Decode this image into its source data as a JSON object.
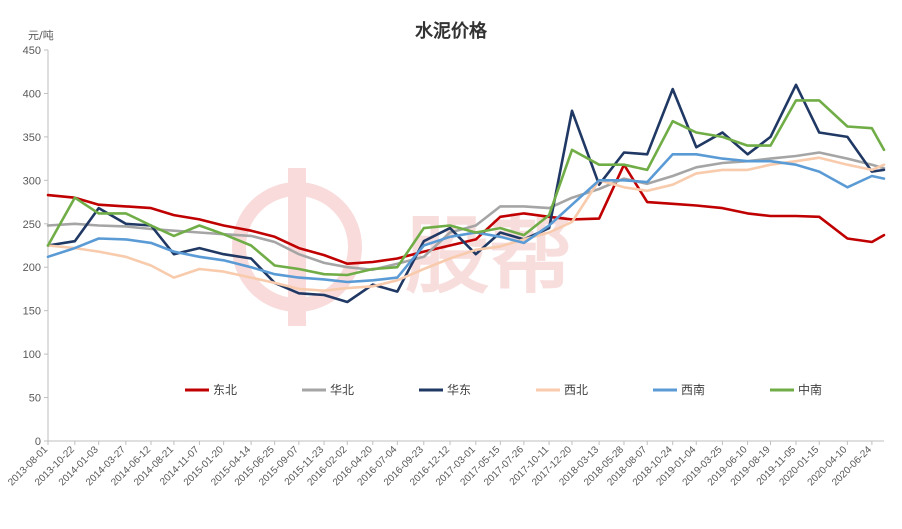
{
  "chart_data": {
    "type": "line",
    "title": "水泥价格",
    "unit": "元/吨",
    "ylim": [
      0,
      450
    ],
    "yticks": [
      0,
      50,
      100,
      150,
      200,
      250,
      300,
      350,
      400,
      450
    ],
    "grid": false,
    "legend_position": "inside-bottom",
    "watermark": "股帮",
    "x_tick_labels": [
      "2013-08-01",
      "2013-10-22",
      "2014-01-03",
      "2014-03-27",
      "2014-06-12",
      "2014-08-21",
      "2014-11-07",
      "2015-01-20",
      "2015-04-14",
      "2015-06-25",
      "2015-09-07",
      "2015-11-23",
      "2016-02-02",
      "2016-04-20",
      "2016-07-04",
      "2016-09-23",
      "2016-12-12",
      "2017-03-01",
      "2017-05-15",
      "2017-07-26",
      "2017-10-11",
      "2017-12-20",
      "2018-03-13",
      "2018-05-28",
      "2018-08-07",
      "2018-10-24",
      "2019-01-04",
      "2019-03-25",
      "2019-06-10",
      "2019-08-19",
      "2019-11-05",
      "2020-01-15",
      "2020-04-10",
      "2020-06-24"
    ],
    "x": [
      "2013-08-01",
      "2013-10-22",
      "2014-01-03",
      "2014-03-27",
      "2014-06-12",
      "2014-08-21",
      "2014-11-07",
      "2015-01-20",
      "2015-04-14",
      "2015-06-25",
      "2015-09-07",
      "2015-11-23",
      "2016-02-02",
      "2016-04-20",
      "2016-07-04",
      "2016-09-23",
      "2016-12-12",
      "2017-03-01",
      "2017-05-15",
      "2017-07-26",
      "2017-10-11",
      "2017-12-20",
      "2018-03-13",
      "2018-05-28",
      "2018-08-07",
      "2018-10-24",
      "2019-01-04",
      "2019-03-25",
      "2019-06-10",
      "2019-08-19",
      "2019-11-05",
      "2020-01-15",
      "2020-04-10",
      "2020-06-24",
      "2020-07-31"
    ],
    "series": [
      {
        "name": "东北",
        "color": "#c00000",
        "values": [
          283,
          280,
          272,
          270,
          268,
          260,
          255,
          248,
          242,
          235,
          222,
          214,
          204,
          206,
          210,
          218,
          225,
          232,
          258,
          262,
          258,
          255,
          256,
          318,
          275,
          273,
          271,
          268,
          262,
          259,
          259,
          258,
          233,
          229,
          237
        ]
      },
      {
        "name": "华北",
        "color": "#a5a5a5",
        "values": [
          248,
          250,
          248,
          247,
          244,
          242,
          240,
          238,
          236,
          229,
          215,
          205,
          200,
          197,
          204,
          212,
          240,
          248,
          270,
          270,
          268,
          280,
          290,
          302,
          296,
          305,
          315,
          320,
          322,
          325,
          328,
          332,
          325,
          318,
          314
        ]
      },
      {
        "name": "华东",
        "color": "#203864",
        "values": [
          225,
          230,
          268,
          250,
          248,
          215,
          222,
          215,
          210,
          182,
          170,
          168,
          160,
          180,
          172,
          230,
          245,
          215,
          240,
          232,
          245,
          380,
          295,
          332,
          330,
          405,
          338,
          355,
          330,
          350,
          410,
          355,
          350,
          310,
          312
        ]
      },
      {
        "name": "西北",
        "color": "#f8cbad",
        "values": [
          225,
          222,
          218,
          212,
          202,
          188,
          198,
          195,
          188,
          182,
          175,
          173,
          176,
          178,
          185,
          198,
          210,
          220,
          224,
          232,
          240,
          252,
          300,
          292,
          288,
          295,
          308,
          312,
          312,
          318,
          322,
          326,
          318,
          312,
          318
        ]
      },
      {
        "name": "西南",
        "color": "#5b9bd5",
        "values": [
          212,
          222,
          233,
          232,
          228,
          218,
          212,
          208,
          200,
          192,
          188,
          186,
          183,
          185,
          188,
          225,
          235,
          240,
          235,
          228,
          248,
          272,
          300,
          300,
          298,
          330,
          330,
          325,
          322,
          322,
          318,
          310,
          292,
          305,
          302
        ]
      },
      {
        "name": "中南",
        "color": "#70ad47",
        "values": [
          225,
          280,
          262,
          262,
          248,
          236,
          248,
          238,
          225,
          202,
          198,
          192,
          191,
          198,
          200,
          245,
          248,
          240,
          245,
          237,
          260,
          335,
          318,
          318,
          312,
          368,
          355,
          350,
          340,
          340,
          392,
          392,
          362,
          360,
          335
        ]
      }
    ]
  }
}
